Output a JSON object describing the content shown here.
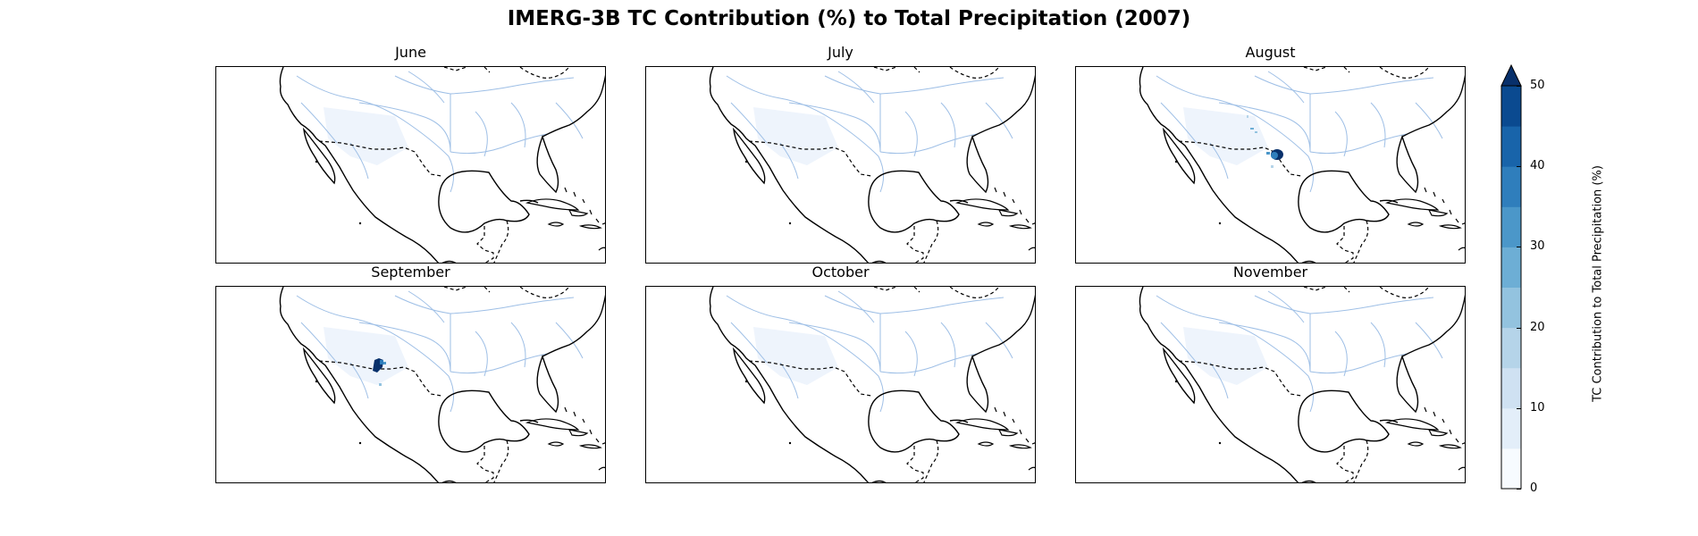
{
  "title": "IMERG-3B TC Contribution (%) to Total Precipitation (2007)",
  "panels": [
    {
      "month": "June"
    },
    {
      "month": "July"
    },
    {
      "month": "August"
    },
    {
      "month": "September"
    },
    {
      "month": "October"
    },
    {
      "month": "November"
    }
  ],
  "colorbar": {
    "label": "TC Contribution to Total Precipitation (%)",
    "ticks": [
      "0",
      "10",
      "20",
      "30",
      "40",
      "50"
    ],
    "min": 0,
    "max": 50,
    "extend": "max",
    "colors": [
      "#f7fbff",
      "#e3eef9",
      "#cfe1f2",
      "#b5d4e9",
      "#93c3df",
      "#6daed5",
      "#4b97c9",
      "#2f7ebc",
      "#1864aa",
      "#0a4a90",
      "#08306b"
    ]
  },
  "colors": {
    "coast": "#000000",
    "border": "#000000",
    "rivers": "#9ebfe6",
    "faint": "#eef4fc",
    "dark": "#08306b"
  }
}
